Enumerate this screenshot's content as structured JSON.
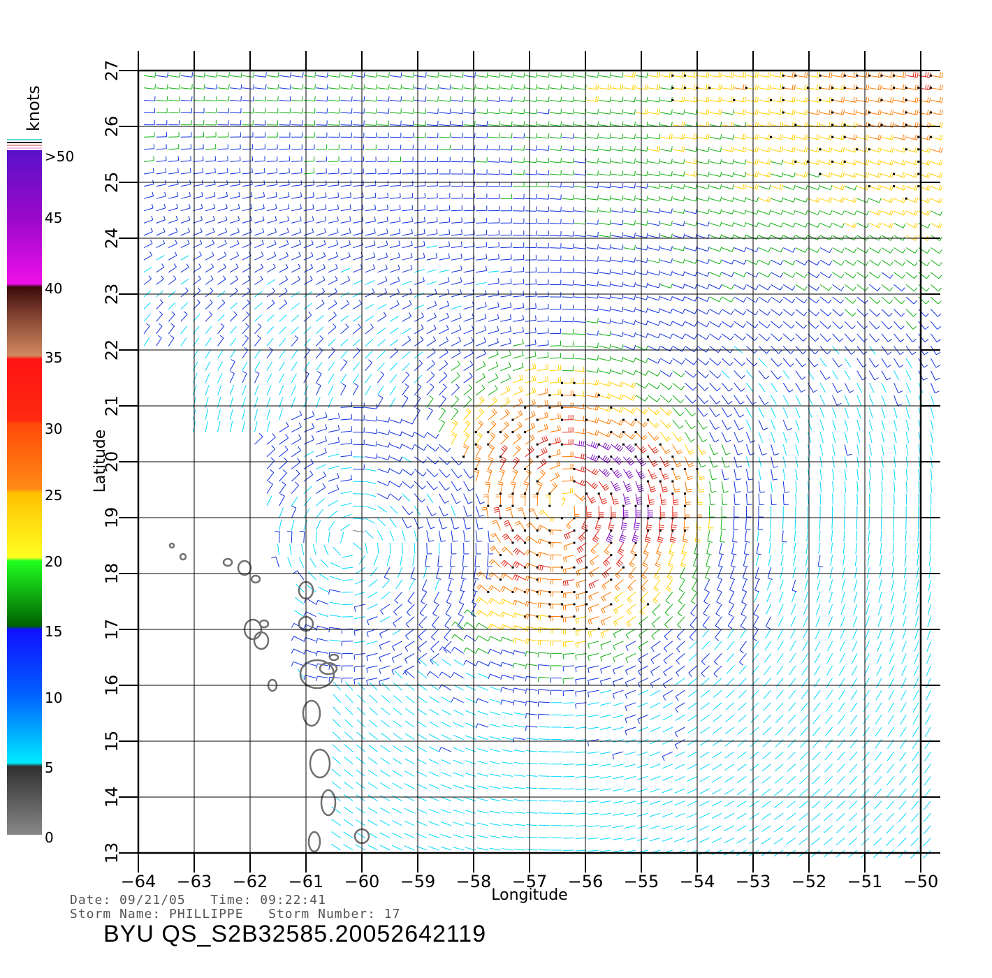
{
  "legend": {
    "unit": "knots",
    "ticks": [
      ">50",
      "45",
      "40",
      "35",
      "30",
      "25",
      "20",
      "15",
      "10",
      "5",
      "0"
    ]
  },
  "axes": {
    "xlabel": "Longitude",
    "ylabel": "Latitude",
    "lon_ticks": [
      "-64",
      "-63",
      "-62",
      "-61",
      "-60",
      "-59",
      "-58",
      "-57",
      "-56",
      "-55",
      "-54",
      "-53",
      "-52",
      "-51",
      "-50"
    ],
    "lat_ticks": [
      "13",
      "14",
      "15",
      "16",
      "17",
      "18",
      "19",
      "20",
      "21",
      "22",
      "23",
      "24",
      "25",
      "26",
      "27"
    ],
    "lon_range": [
      -64,
      -50
    ],
    "lat_range": [
      13,
      27
    ]
  },
  "info": {
    "line1": "Date: 09/21/05   Time: 09:22:41",
    "line2": "Storm Name: PHILLIPPE   Storm Number: 17",
    "product": "BYU QS_S2B32585.20052642119"
  },
  "colors": {
    "calm": "#808080",
    "light": "#00d8ff",
    "moderate": "#1030e0",
    "fresh": "#10b010",
    "strong": "#ffd000",
    "gale": "#ff7a00",
    "storm": "#e02010",
    "extreme": "#8010c0",
    "land": "#707070"
  },
  "storm": {
    "center_lon": -56.4,
    "center_lat": 19.2,
    "max_speed_knots": 45
  }
}
